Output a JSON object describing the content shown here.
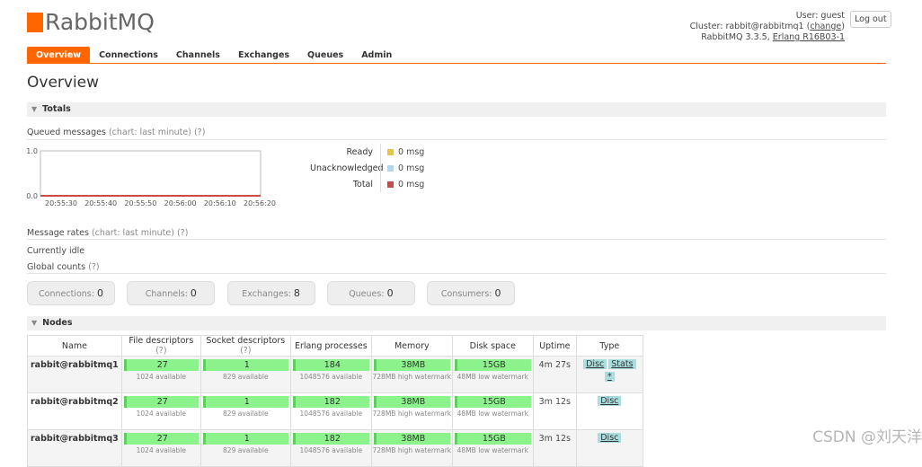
{
  "header": {
    "logo": "RabbitMQ",
    "user_label": "User:",
    "user": "guest",
    "cluster_label": "Cluster:",
    "cluster": "rabbit@rabbitmq1",
    "change": "change",
    "version": "RabbitMQ 3.3.5,",
    "erlang": "Erlang R16B03-1",
    "logout": "Log out"
  },
  "tabs": [
    "Overview",
    "Connections",
    "Channels",
    "Exchanges",
    "Queues",
    "Admin"
  ],
  "page_title": "Overview",
  "totals": {
    "heading": "Totals",
    "queued_label": "Queued messages",
    "queued_hint": "(chart: last minute)",
    "queued_help": "(?)",
    "chart": {
      "yticks": [
        "1.0",
        "0.0"
      ],
      "xticks": [
        "20:55:30",
        "20:55:40",
        "20:55:50",
        "20:56:00",
        "20:56:10",
        "20:56:20"
      ]
    },
    "legend": [
      {
        "name": "Ready",
        "value": "0 msg",
        "color": "#edc240"
      },
      {
        "name": "Unacknowledged",
        "value": "0 msg",
        "color": "#afd8f8"
      },
      {
        "name": "Total",
        "value": "0 msg",
        "color": "#cb4b4b"
      }
    ],
    "rates_label": "Message rates",
    "rates_hint": "(chart: last minute)",
    "rates_help": "(?)",
    "idle": "Currently idle",
    "global_label": "Global counts",
    "global_help": "(?)",
    "counts": [
      {
        "name": "Connections:",
        "value": 0
      },
      {
        "name": "Channels:",
        "value": 0
      },
      {
        "name": "Exchanges:",
        "value": 8
      },
      {
        "name": "Queues:",
        "value": 0
      },
      {
        "name": "Consumers:",
        "value": 0
      }
    ]
  },
  "nodes": {
    "heading": "Nodes",
    "columns": [
      {
        "name": "Name"
      },
      {
        "name": "File descriptors",
        "help": "(?)"
      },
      {
        "name": "Socket descriptors",
        "help": "(?)"
      },
      {
        "name": "Erlang processes"
      },
      {
        "name": "Memory"
      },
      {
        "name": "Disk space"
      },
      {
        "name": "Uptime"
      },
      {
        "name": "Type"
      }
    ],
    "rows": [
      {
        "name": "rabbit@rabbitmq1",
        "fd": {
          "value": "27",
          "sub": "1024 available"
        },
        "sockets": {
          "value": "1",
          "sub": "829 available"
        },
        "erlang": {
          "value": "184",
          "sub": "1048576 available"
        },
        "memory": {
          "value": "38MB",
          "sub": "728MB high watermark"
        },
        "disk": {
          "value": "15GB",
          "sub": "48MB low watermark"
        },
        "uptime": "4m 27s",
        "type": [
          "Disc",
          "Stats",
          "*"
        ]
      },
      {
        "name": "rabbit@rabbitmq2",
        "fd": {
          "value": "27",
          "sub": "1024 available"
        },
        "sockets": {
          "value": "1",
          "sub": "829 available"
        },
        "erlang": {
          "value": "182",
          "sub": "1048576 available"
        },
        "memory": {
          "value": "38MB",
          "sub": "728MB high watermark"
        },
        "disk": {
          "value": "15GB",
          "sub": "48MB low watermark"
        },
        "uptime": "3m 12s",
        "type": [
          "Disc"
        ]
      },
      {
        "name": "rabbit@rabbitmq3",
        "fd": {
          "value": "27",
          "sub": "1024 available"
        },
        "sockets": {
          "value": "1",
          "sub": "829 available"
        },
        "erlang": {
          "value": "182",
          "sub": "1048576 available"
        },
        "memory": {
          "value": "38MB",
          "sub": "728MB high watermark"
        },
        "disk": {
          "value": "15GB",
          "sub": "48MB low watermark"
        },
        "uptime": "3m 12s",
        "type": [
          "Disc"
        ]
      }
    ]
  },
  "watermark": "CSDN @刘天洋"
}
